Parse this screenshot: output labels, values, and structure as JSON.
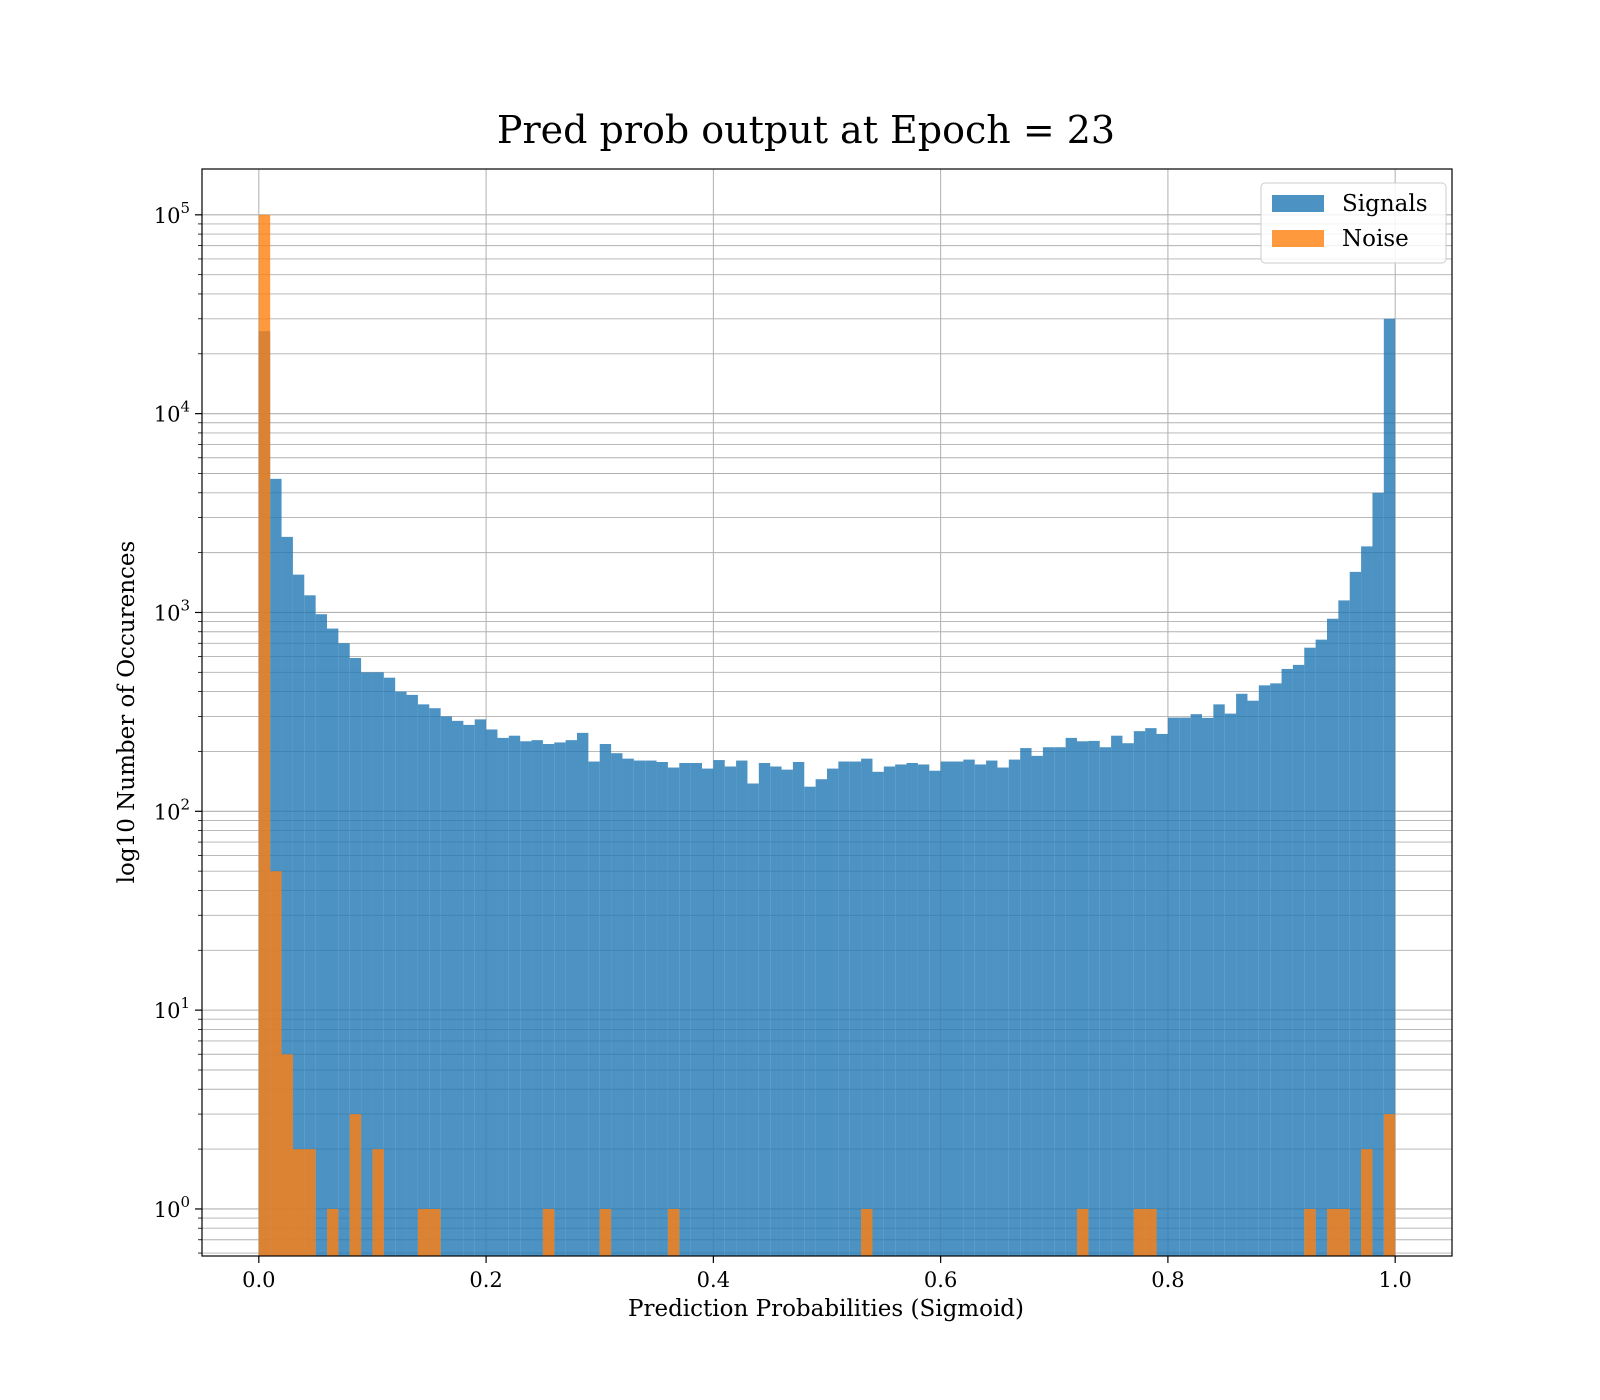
{
  "chart_data": {
    "type": "bar",
    "title": "Pred prob output at Epoch = 23",
    "xlabel": "Prediction Probabilities (Sigmoid)",
    "ylabel": "log10 Number of Occurences",
    "x_scale": "linear",
    "y_scale": "log",
    "xlim": [
      -0.05,
      1.05
    ],
    "ylim": [
      0.58,
      170000
    ],
    "x_ticks": [
      0.0,
      0.2,
      0.4,
      0.6,
      0.8,
      1.0
    ],
    "x_tick_labels": [
      "0.0",
      "0.2",
      "0.4",
      "0.6",
      "0.8",
      "1.0"
    ],
    "y_ticks": [
      1,
      10,
      100,
      1000,
      10000,
      100000
    ],
    "y_tick_labels": [
      {
        "base": "10",
        "exp": "0"
      },
      {
        "base": "10",
        "exp": "1"
      },
      {
        "base": "10",
        "exp": "2"
      },
      {
        "base": "10",
        "exp": "3"
      },
      {
        "base": "10",
        "exp": "4"
      },
      {
        "base": "10",
        "exp": "5"
      }
    ],
    "grid": true,
    "minor_grid_y": true,
    "legend_position": "top-right",
    "bins": 100,
    "bin_range": [
      0,
      1
    ],
    "series": [
      {
        "name": "Signals",
        "color": "#1f77b4",
        "opacity": 0.8,
        "values": [
          26000,
          4700,
          2400,
          1550,
          1220,
          980,
          830,
          700,
          590,
          500,
          500,
          470,
          400,
          385,
          345,
          330,
          300,
          285,
          272,
          290,
          258,
          234,
          240,
          225,
          228,
          218,
          222,
          228,
          248,
          178,
          218,
          196,
          184,
          180,
          180,
          177,
          166,
          175,
          175,
          164,
          181,
          168,
          180,
          138,
          175,
          168,
          162,
          177,
          133,
          145,
          164,
          178,
          178,
          184,
          158,
          168,
          172,
          175,
          172,
          160,
          178,
          178,
          182,
          172,
          180,
          166,
          182,
          208,
          190,
          210,
          210,
          234,
          225,
          226,
          210,
          240,
          220,
          253,
          262,
          245,
          296,
          296,
          308,
          295,
          345,
          310,
          390,
          360,
          430,
          440,
          520,
          545,
          665,
          730,
          930,
          1150,
          1600,
          2150,
          4000,
          30000
        ]
      },
      {
        "name": "Noise",
        "color": "#ff7f0e",
        "opacity": 0.8,
        "values": [
          100000,
          50,
          6,
          2,
          2,
          0,
          1,
          0,
          3,
          0,
          2,
          0,
          0,
          0,
          1,
          1,
          0,
          0,
          0,
          0,
          0,
          0,
          0,
          0,
          0,
          1,
          0,
          0,
          0,
          0,
          1,
          0,
          0,
          0,
          0,
          0,
          1,
          0,
          0,
          0,
          0,
          0,
          0,
          0,
          0,
          0,
          0,
          0,
          0,
          0,
          0,
          0,
          0,
          1,
          0,
          0,
          0,
          0,
          0,
          0,
          0,
          0,
          0,
          0,
          0,
          0,
          0,
          0,
          0,
          0,
          0,
          0,
          1,
          0,
          0,
          0,
          0,
          1,
          1,
          0,
          0,
          0,
          0,
          0,
          0,
          0,
          0,
          0,
          0,
          0,
          0,
          0,
          1,
          0,
          1,
          1,
          0,
          2,
          0,
          3
        ]
      }
    ]
  }
}
